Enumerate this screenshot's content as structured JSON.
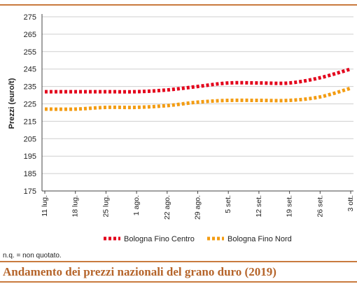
{
  "chart_data": {
    "type": "line",
    "title": "Andamento dei prezzi nazionali del grano duro (2019)",
    "ylabel": "Prezzi (euro/t)",
    "xlabel": "",
    "ylim": [
      175,
      275
    ],
    "yticks": [
      175,
      185,
      195,
      205,
      215,
      225,
      235,
      245,
      255,
      265,
      275
    ],
    "categories": [
      "11 lug.",
      "18 lug.",
      "25 lug.",
      "1 ago.",
      "22 ago.",
      "29 ago.",
      "5 set.",
      "12 set.",
      "19 set.",
      "26 set.",
      "3 ott."
    ],
    "series": [
      {
        "name": "Bologna Fino Centro",
        "color": "#e3001b",
        "values": [
          232,
          232,
          232,
          232,
          233,
          235,
          237,
          237,
          237,
          240,
          245
        ]
      },
      {
        "name": "Bologna Fino Nord",
        "color": "#f39c12",
        "values": [
          222,
          222,
          223,
          223,
          224,
          226,
          227,
          227,
          227,
          229,
          234
        ]
      }
    ],
    "grid": "horizontal",
    "legend": "bottom"
  },
  "footnote": "n.q. = non quotato."
}
